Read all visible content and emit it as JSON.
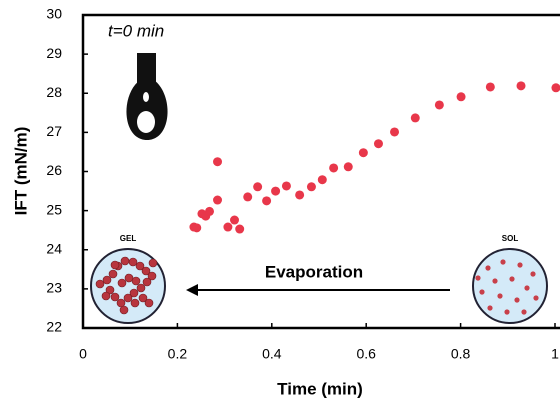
{
  "chart_data": {
    "type": "scatter",
    "x_label": "Time (min)",
    "y_label": "IFT (mN/m)",
    "annotations": [
      "t=0 min",
      "Evaporation",
      "GEL",
      "SOL"
    ],
    "x": [
      0.235,
      0.241,
      0.252,
      0.26,
      0.268,
      0.285,
      0.285,
      0.307,
      0.321,
      0.332,
      0.349,
      0.37,
      0.389,
      0.408,
      0.431,
      0.459,
      0.484,
      0.507,
      0.531,
      0.562,
      0.594,
      0.626,
      0.66,
      0.704,
      0.755,
      0.801,
      0.863,
      0.928,
      1.002
    ],
    "values": [
      24.58,
      24.56,
      24.92,
      24.86,
      24.98,
      26.25,
      25.27,
      24.58,
      24.76,
      24.53,
      25.35,
      25.61,
      25.25,
      25.5,
      25.63,
      25.4,
      25.61,
      25.79,
      26.09,
      26.12,
      26.48,
      26.71,
      27.01,
      27.37,
      27.7,
      27.91,
      28.16,
      28.19,
      28.14
    ],
    "color": "#e8374a",
    "xlim": [
      0,
      1
    ],
    "ylim": [
      22,
      30
    ],
    "xticks": [
      0,
      0.2,
      0.4,
      0.6,
      0.8,
      1
    ],
    "yticks": [
      22,
      23,
      24,
      25,
      26,
      27,
      28,
      29,
      30
    ]
  }
}
